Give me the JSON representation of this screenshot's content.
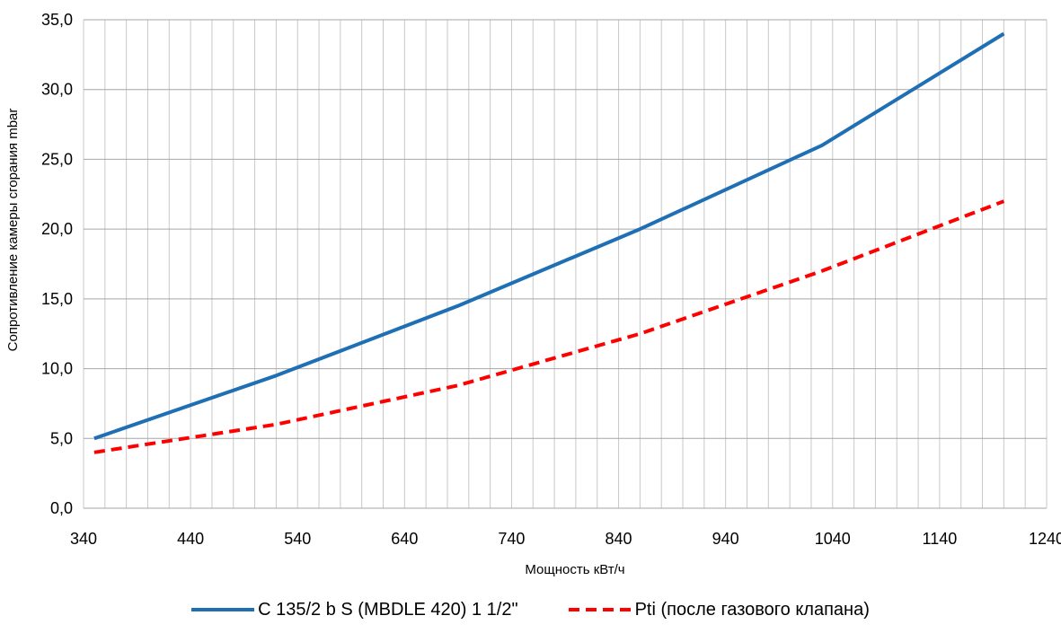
{
  "chart_data": {
    "type": "line",
    "title": "",
    "xlabel": "Мощность кВт/ч",
    "ylabel": "Сопротивление камеры сгорания mbar",
    "xlim": [
      340,
      1240
    ],
    "ylim": [
      0,
      35
    ],
    "x_ticks": [
      "340",
      "440",
      "540",
      "640",
      "740",
      "840",
      "940",
      "1040",
      "1140",
      "1240"
    ],
    "y_ticks": [
      "0,0",
      "5,0",
      "10,0",
      "15,0",
      "20,0",
      "25,0",
      "30,0",
      "35,0"
    ],
    "x_tick_values": [
      340,
      440,
      540,
      640,
      740,
      840,
      940,
      1040,
      1140,
      1240
    ],
    "y_tick_values": [
      0,
      5,
      10,
      15,
      20,
      25,
      30,
      35
    ],
    "x_minor_grid_step": 20,
    "y_grid_step": 5,
    "grid": true,
    "legend_position": "bottom",
    "series": [
      {
        "name": "C 135/2 b S (MBDLE 420) 1 1/2\"",
        "color": "#1f6fb4",
        "style": "solid",
        "points": [
          [
            350,
            5.0
          ],
          [
            520,
            9.5
          ],
          [
            690,
            14.5
          ],
          [
            860,
            20.0
          ],
          [
            1030,
            26.0
          ],
          [
            1200,
            34.0
          ]
        ]
      },
      {
        "name": "Pti (после газового клапана)",
        "color": "#ff0000",
        "style": "dashed",
        "points": [
          [
            350,
            4.0
          ],
          [
            520,
            6.0
          ],
          [
            690,
            8.8
          ],
          [
            860,
            12.5
          ],
          [
            1030,
            17.0
          ],
          [
            1200,
            22.0
          ]
        ]
      }
    ]
  }
}
